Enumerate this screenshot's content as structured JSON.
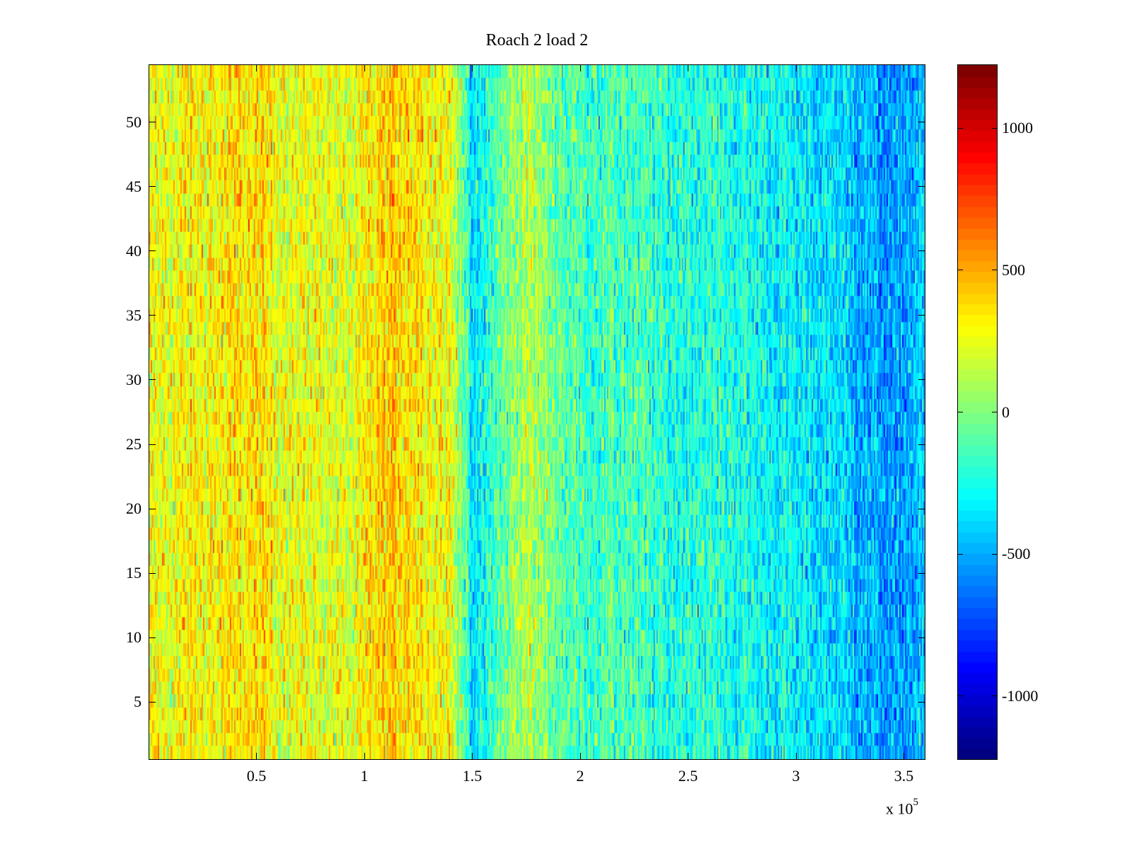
{
  "chart_data": {
    "type": "heatmap",
    "title": "Roach 2 load 2",
    "xlabel": "",
    "ylabel": "",
    "x_multiplier_label": "x 10",
    "x_multiplier_exponent": "5",
    "xlim": [
      0,
      3.6
    ],
    "ylim": [
      0.5,
      54.5
    ],
    "rows": 54,
    "xticks": [
      0.5,
      1,
      1.5,
      2,
      2.5,
      3,
      3.5
    ],
    "xtick_labels": [
      "0.5",
      "1",
      "1.5",
      "2",
      "2.5",
      "3",
      "3.5"
    ],
    "yticks": [
      5,
      10,
      15,
      20,
      25,
      30,
      35,
      40,
      45,
      50
    ],
    "ytick_labels": [
      "5",
      "10",
      "15",
      "20",
      "25",
      "30",
      "35",
      "40",
      "45",
      "50"
    ],
    "colormap": "jet",
    "clim": [
      -1225,
      1225
    ],
    "colorbar_ticks": [
      1000,
      500,
      0,
      -500,
      -1000
    ],
    "colorbar_tick_labels": [
      "1000",
      "500",
      "0",
      "-500",
      "-1000"
    ],
    "column_profile_x": [
      0,
      0.2,
      0.4,
      0.5,
      0.6,
      0.8,
      0.95,
      1.1,
      1.2,
      1.3,
      1.4,
      1.45,
      1.5,
      1.55,
      1.65,
      1.75,
      1.85,
      1.95,
      2.05,
      2.2,
      2.4,
      2.6,
      2.8,
      3.0,
      3.2,
      3.35,
      3.45,
      3.55,
      3.6
    ],
    "column_profile_mean": [
      250,
      300,
      330,
      380,
      280,
      250,
      220,
      420,
      400,
      330,
      260,
      30,
      -420,
      -250,
      -50,
      150,
      0,
      -100,
      -150,
      -120,
      -220,
      -200,
      -260,
      -330,
      -370,
      -500,
      -560,
      -470,
      -450
    ],
    "noise_amplitude": 260
  }
}
